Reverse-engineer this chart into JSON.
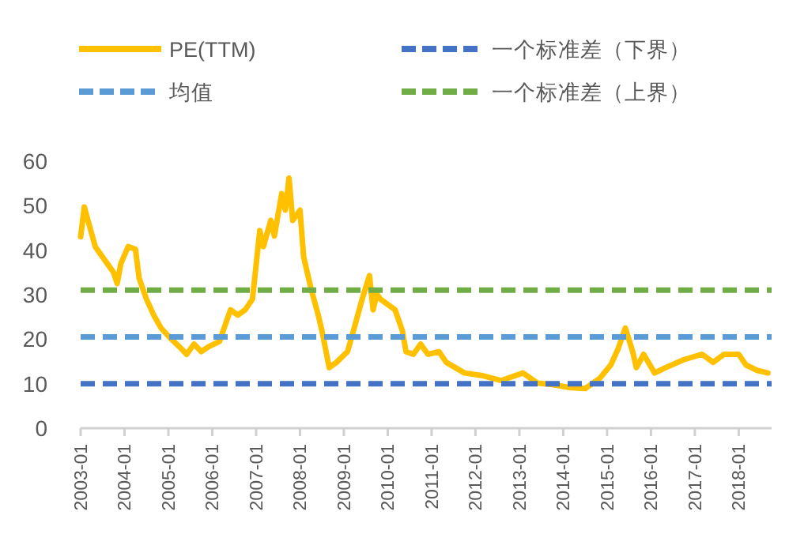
{
  "chart_data": {
    "type": "line",
    "legend": "top",
    "xlim": [
      "2003-01",
      "2018-10"
    ],
    "ylim": [
      0,
      60
    ],
    "yticks": [
      0,
      10,
      20,
      30,
      40,
      50,
      60
    ],
    "xticks": [
      "2003-01",
      "2004-01",
      "2005-01",
      "2006-01",
      "2007-01",
      "2008-01",
      "2009-01",
      "2010-01",
      "2011-01",
      "2012-01",
      "2013-01",
      "2014-01",
      "2015-01",
      "2016-01",
      "2017-01",
      "2018-01"
    ],
    "series": [
      {
        "name": "PE(TTM)",
        "color": "#ffc000",
        "line_style": "solid",
        "x": [
          "2003-01",
          "2003-02",
          "2003-03",
          "2003-05",
          "2003-08",
          "2003-10",
          "2003-11",
          "2003-12",
          "2004-02",
          "2004-04",
          "2004-05",
          "2004-07",
          "2004-09",
          "2004-11",
          "2005-01",
          "2005-04",
          "2005-06",
          "2005-08",
          "2005-10",
          "2005-12",
          "2006-03",
          "2006-05",
          "2006-06",
          "2006-08",
          "2006-10",
          "2006-12",
          "2007-02",
          "2007-03",
          "2007-05",
          "2007-06",
          "2007-08",
          "2007-09",
          "2007-10",
          "2007-11",
          "2008-01",
          "2008-02",
          "2008-04",
          "2008-06",
          "2008-07",
          "2008-09",
          "2008-11",
          "2009-02",
          "2009-04",
          "2009-06",
          "2009-08",
          "2009-09",
          "2009-10",
          "2009-11",
          "2010-01",
          "2010-03",
          "2010-05",
          "2010-06",
          "2010-08",
          "2010-10",
          "2010-12",
          "2011-03",
          "2011-05",
          "2011-10",
          "2012-03",
          "2012-08",
          "2013-02",
          "2013-06",
          "2013-10",
          "2014-03",
          "2014-07",
          "2014-11",
          "2015-02",
          "2015-04",
          "2015-06",
          "2015-08",
          "2015-09",
          "2015-11",
          "2016-02",
          "2016-05",
          "2016-10",
          "2017-03",
          "2017-06",
          "2017-09",
          "2018-01",
          "2018-03",
          "2018-06",
          "2018-09"
        ],
        "values": [
          43,
          49.7,
          46.7,
          40.8,
          37.3,
          35,
          32.5,
          37,
          40.8,
          40.2,
          33.7,
          29,
          25.4,
          22.5,
          20.7,
          18.3,
          16.6,
          18.9,
          17.2,
          18.3,
          19.5,
          24.3,
          26.6,
          25.4,
          26.6,
          29,
          44.4,
          40.8,
          46.7,
          43.2,
          52.7,
          49,
          56.2,
          46.7,
          49,
          38.5,
          31.4,
          25.4,
          21.9,
          13.6,
          14.8,
          17.2,
          23,
          29,
          34.3,
          26.6,
          30.2,
          29,
          27.8,
          26.6,
          21.9,
          17.2,
          16.6,
          18.9,
          16.6,
          17.2,
          14.8,
          12.4,
          11.8,
          10.7,
          12.4,
          10.1,
          9.8,
          9.1,
          8.9,
          11.2,
          14.2,
          17.8,
          22.5,
          17.2,
          13.6,
          16.6,
          12.4,
          13.6,
          15.4,
          16.6,
          14.8,
          16.6,
          16.6,
          14.2,
          13,
          12.4
        ]
      },
      {
        "name": "一个标准差（下界）",
        "color": "#4472c4",
        "line_style": "dashed",
        "x": [
          "2003-01",
          "2018-10"
        ],
        "values": [
          10,
          10
        ]
      },
      {
        "name": "均值",
        "color": "#5b9bd5",
        "line_style": "dashed",
        "x": [
          "2003-01",
          "2018-10"
        ],
        "values": [
          20.5,
          20.5
        ]
      },
      {
        "name": "一个标准差（上界）",
        "color": "#70ad47",
        "line_style": "dashed",
        "x": [
          "2003-01",
          "2018-10"
        ],
        "values": [
          31,
          31
        ]
      }
    ]
  }
}
